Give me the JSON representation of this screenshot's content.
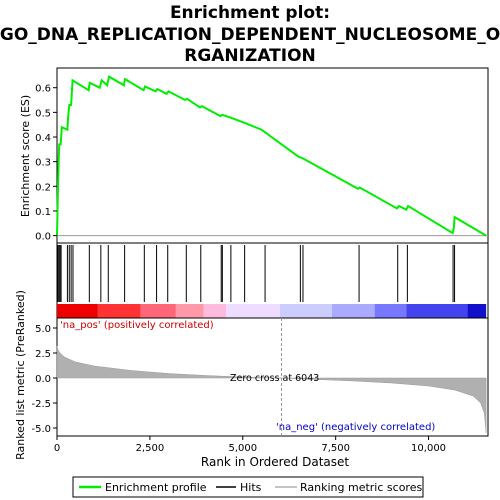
{
  "chart_data": {
    "type": "line",
    "title": "Enrichment plot:\nGO_DNA_REPLICATION_DEPENDENT_NUCLEOSOME_ORGANIZATION",
    "title_lines": [
      "Enrichment plot:",
      "GO_DNA_REPLICATION_DEPENDENT_NUCLEOSOME_O",
      "RGANIZATION"
    ],
    "xlabel": "Rank in Ordered Dataset",
    "x_ticks": [
      0,
      2500,
      5000,
      7500,
      10000
    ],
    "x_tick_labels": [
      "0",
      "2,500",
      "5,000",
      "7,500",
      "10,000"
    ],
    "xlim": [
      0,
      11600
    ],
    "es_panel": {
      "ylabel": "Enrichment score (ES)",
      "ylim": [
        -0.03,
        0.68
      ],
      "y_ticks": [
        0.0,
        0.1,
        0.2,
        0.3,
        0.4,
        0.5,
        0.6
      ],
      "y_tick_labels": [
        "0.0",
        "0.1",
        "0.2",
        "0.3",
        "0.4",
        "0.5",
        "0.6"
      ],
      "color": "#00ee00",
      "profile": [
        [
          0,
          0.0
        ],
        [
          20,
          0.14
        ],
        [
          40,
          0.28
        ],
        [
          60,
          0.37
        ],
        [
          100,
          0.37
        ],
        [
          130,
          0.44
        ],
        [
          280,
          0.43
        ],
        [
          300,
          0.48
        ],
        [
          330,
          0.53
        ],
        [
          380,
          0.53
        ],
        [
          420,
          0.63
        ],
        [
          850,
          0.59
        ],
        [
          880,
          0.62
        ],
        [
          1150,
          0.6
        ],
        [
          1200,
          0.63
        ],
        [
          1350,
          0.61
        ],
        [
          1400,
          0.645
        ],
        [
          1800,
          0.61
        ],
        [
          1830,
          0.635
        ],
        [
          2330,
          0.59
        ],
        [
          2370,
          0.605
        ],
        [
          2650,
          0.585
        ],
        [
          2700,
          0.595
        ],
        [
          2950,
          0.575
        ],
        [
          3000,
          0.585
        ],
        [
          3450,
          0.55
        ],
        [
          3500,
          0.555
        ],
        [
          3850,
          0.52
        ],
        [
          3900,
          0.525
        ],
        [
          4400,
          0.485
        ],
        [
          4450,
          0.49
        ],
        [
          4650,
          0.48
        ],
        [
          5000,
          0.46
        ],
        [
          5500,
          0.43
        ],
        [
          6500,
          0.32
        ],
        [
          6600,
          0.315
        ],
        [
          8100,
          0.19
        ],
        [
          8150,
          0.195
        ],
        [
          9150,
          0.11
        ],
        [
          9200,
          0.12
        ],
        [
          9400,
          0.105
        ],
        [
          9450,
          0.12
        ],
        [
          10650,
          0.01
        ],
        [
          10680,
          0.03
        ],
        [
          10700,
          0.075
        ],
        [
          11550,
          0.0
        ]
      ]
    },
    "hits": [
      20,
      50,
      80,
      110,
      280,
      330,
      380,
      430,
      870,
      1180,
      1380,
      1820,
      2350,
      2680,
      2980,
      3480,
      3870,
      4420,
      4450,
      4680,
      5050,
      5600,
      6550,
      6620,
      8130,
      9170,
      9430,
      10660,
      10700
    ],
    "metric_panel": {
      "ylabel": "Ranked list metric (PreRanked)",
      "ylim": [
        -5.8,
        6.0
      ],
      "y_ticks": [
        -5.0,
        -2.5,
        0.0,
        2.5,
        5.0
      ],
      "y_tick_labels": [
        "-5.0",
        "-2.5",
        "0.0",
        "2.5",
        "5.0"
      ],
      "zero_cross": 6043,
      "zero_cross_label": "Zero cross at 6043",
      "pos_label": "'na_pos' (positively correlated)",
      "neg_label": "'na_neg' (negatively correlated)",
      "color": "#b0b0b0",
      "curve": [
        [
          0,
          3.2
        ],
        [
          30,
          2.8
        ],
        [
          80,
          2.5
        ],
        [
          200,
          2.1
        ],
        [
          500,
          1.6
        ],
        [
          1000,
          1.2
        ],
        [
          2000,
          0.75
        ],
        [
          3000,
          0.45
        ],
        [
          4000,
          0.25
        ],
        [
          5000,
          0.1
        ],
        [
          6043,
          0.0
        ],
        [
          7000,
          -0.15
        ],
        [
          8000,
          -0.3
        ],
        [
          9000,
          -0.5
        ],
        [
          10000,
          -0.8
        ],
        [
          10700,
          -1.2
        ],
        [
          11200,
          -1.8
        ],
        [
          11400,
          -2.5
        ],
        [
          11500,
          -3.5
        ],
        [
          11550,
          -5.5
        ]
      ]
    },
    "legend": {
      "position": "bottom",
      "entries": [
        {
          "label": "Enrichment profile",
          "color": "#00ee00"
        },
        {
          "label": "Hits",
          "color": "#000000"
        },
        {
          "label": "Ranking metric scores",
          "color": "#b0b0b0"
        }
      ]
    },
    "colorbar": {
      "colors": [
        "#ee0000",
        "#ff3333",
        "#ff6677",
        "#ff99aa",
        "#ffbbdd",
        "#eeddff",
        "#ccccff",
        "#aaaaff",
        "#7777ff",
        "#4444ee",
        "#1111cc"
      ],
      "breaks": [
        0,
        1100,
        2250,
        3200,
        3950,
        4550,
        6000,
        7400,
        8550,
        9400,
        11050,
        11550
      ]
    }
  }
}
